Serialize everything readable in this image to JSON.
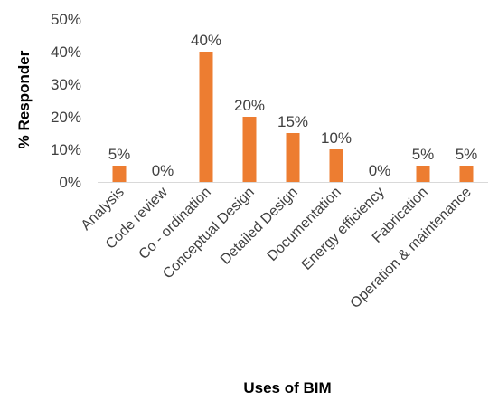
{
  "chart_data": {
    "type": "bar",
    "title": "",
    "xlabel": "Uses of BIM",
    "ylabel": "% Responder",
    "categories": [
      "Analysis",
      "Code review",
      "Co - ordination",
      "Conceptual Design",
      "Detailed Design",
      "Documentation",
      "Energy efficiency",
      "Fabrication",
      "Operation & maintenance"
    ],
    "values": [
      5,
      0,
      40,
      20,
      15,
      10,
      0,
      5,
      5
    ],
    "data_labels": [
      "5%",
      "0%",
      "40%",
      "20%",
      "15%",
      "10%",
      "0%",
      "5%",
      "5%"
    ],
    "ylim": [
      0,
      50
    ],
    "yticks": [
      0,
      10,
      20,
      30,
      40,
      50
    ],
    "ytick_labels": [
      "0%",
      "10%",
      "20%",
      "30%",
      "40%",
      "50%"
    ],
    "grid": false,
    "legend": "none",
    "bar_color": "#ED7D31"
  }
}
